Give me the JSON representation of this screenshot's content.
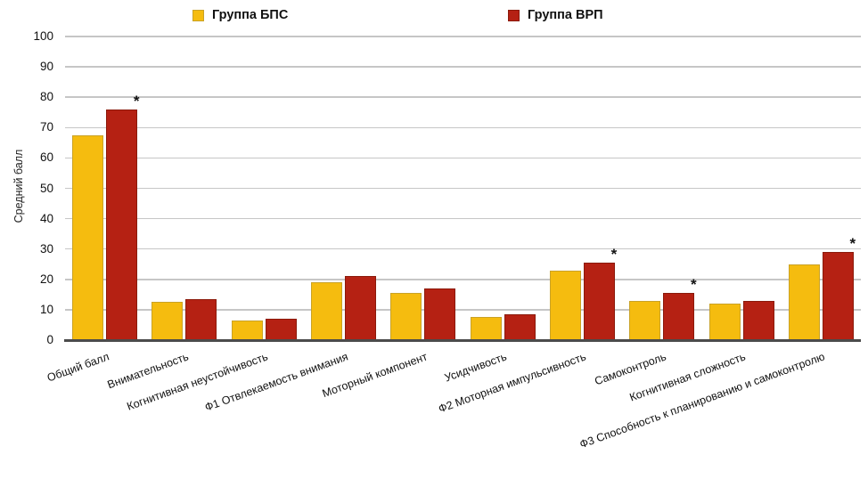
{
  "chart_data": {
    "type": "bar",
    "title": "",
    "xlabel": "",
    "ylabel": "Средний балл",
    "ylim": [
      0,
      100
    ],
    "ytick_step": 10,
    "grid": "horizontal",
    "legend_position": "top",
    "significance_marker": "*",
    "categories": [
      "Общий балл",
      "Внимательность",
      "Когнитивная неустойчивость",
      "Ф1 Отвлекаемость внимания",
      "Моторный компонент",
      "Усидчивость",
      "Ф2 Моторная импульсивность",
      "Самоконтроль",
      "Когнитивная сложность",
      "Ф3 Способность к планированию и самоконтролю"
    ],
    "series": [
      {
        "name": "Группа БПС",
        "color": "#F5BC0F",
        "border_color": "#C9A227",
        "values": [
          67.5,
          12.5,
          6.5,
          19,
          15.5,
          7.5,
          23,
          13,
          12,
          25
        ]
      },
      {
        "name": "Группа ВРП",
        "color": "#B52113",
        "border_color": "#8B1A0B",
        "values": [
          76,
          13.5,
          7,
          21,
          17,
          8.5,
          25.5,
          15.5,
          13,
          29
        ],
        "significant_categories": [
          0,
          6,
          7,
          9
        ]
      }
    ]
  }
}
